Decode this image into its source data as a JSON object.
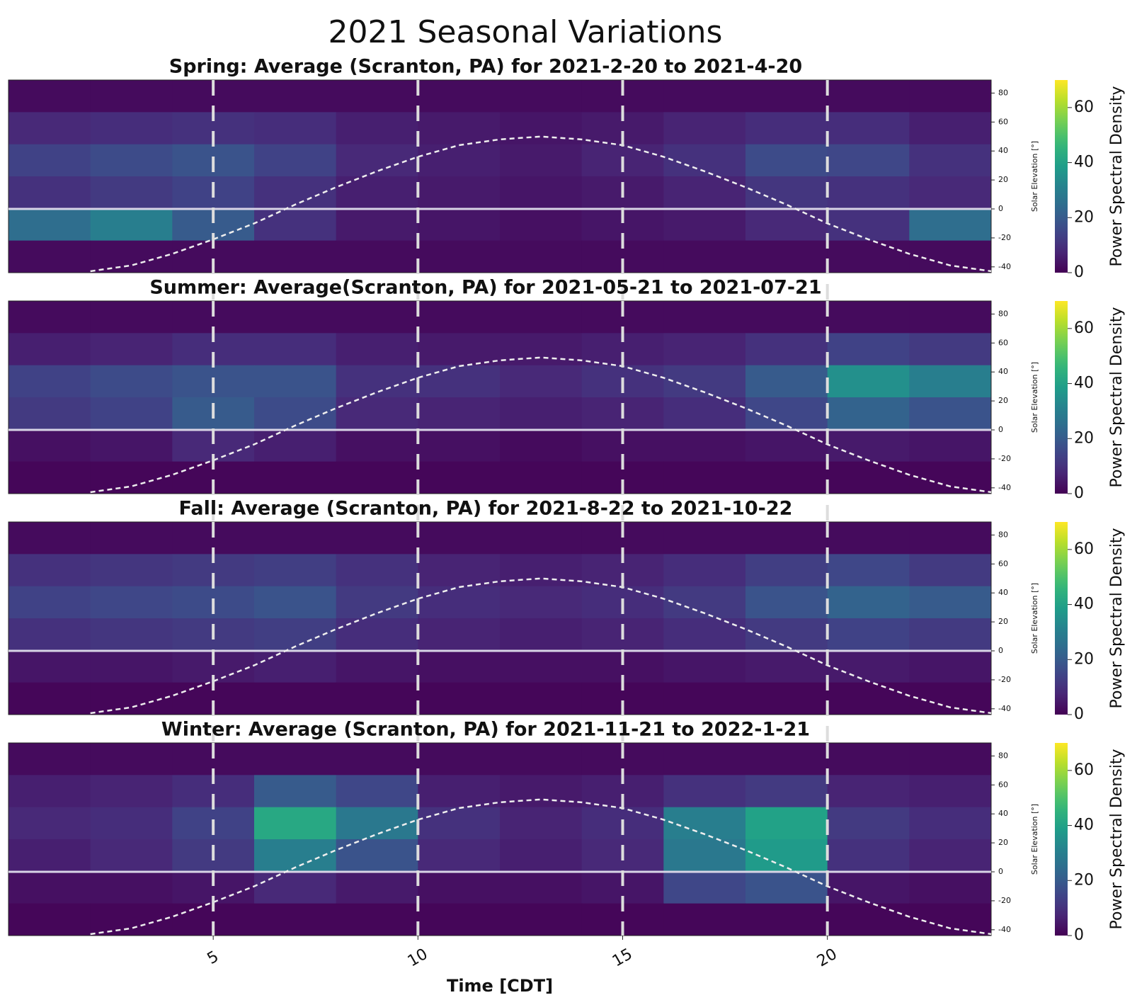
{
  "title": "2021 Seasonal Variations",
  "chart_data": [
    {
      "type": "heatmap",
      "title": "Spring: Average (Scranton, PA) for 2021-2-20 to 2021-4-20",
      "x_bins": [
        0,
        2,
        4,
        6,
        8,
        10,
        12,
        14,
        16,
        18,
        20,
        22,
        24
      ],
      "xlim": [
        0,
        24
      ],
      "xticks": [
        5,
        10,
        15,
        20
      ],
      "values": [
        [
          2,
          2,
          2,
          2,
          2,
          2,
          2,
          2,
          2,
          2,
          2,
          2
        ],
        [
          8,
          9,
          10,
          9,
          6,
          5,
          4,
          5,
          7,
          9,
          9,
          6
        ],
        [
          14,
          16,
          18,
          14,
          8,
          6,
          5,
          7,
          10,
          16,
          15,
          10
        ],
        [
          10,
          12,
          14,
          10,
          6,
          5,
          4,
          5,
          7,
          11,
          10,
          8
        ],
        [
          25,
          30,
          20,
          10,
          5,
          4,
          3,
          4,
          5,
          8,
          10,
          25
        ],
        [
          2,
          2,
          2,
          2,
          2,
          2,
          2,
          2,
          2,
          2,
          2,
          2
        ]
      ],
      "colormap": "viridis",
      "clim": [
        0,
        70
      ],
      "cticks": [
        0,
        20,
        40,
        60
      ],
      "colorbar_label": "Power Spectral Density",
      "y2lim": [
        -44,
        89
      ],
      "y2ticks": [
        -40,
        -20,
        0,
        20,
        40,
        60,
        80
      ],
      "y2label": "Solar Elevation [°]",
      "hline": 0,
      "elevation": {
        "x": [
          2,
          3,
          4,
          5,
          6,
          7,
          8,
          9,
          10,
          11,
          12,
          13,
          14,
          15,
          16,
          17,
          18,
          19,
          20,
          21,
          22,
          23,
          24
        ],
        "values": [
          -43,
          -39,
          -31,
          -21,
          -10,
          3,
          15,
          26,
          36,
          44,
          48,
          50,
          48,
          44,
          36,
          26,
          15,
          3,
          -10,
          -21,
          -31,
          -39,
          -43
        ]
      }
    },
    {
      "type": "heatmap",
      "title": "Summer: Average(Scranton, PA) for 2021-05-21 to 2021-07-21",
      "x_bins": [
        0,
        2,
        4,
        6,
        8,
        10,
        12,
        14,
        16,
        18,
        20,
        22,
        24
      ],
      "xlim": [
        0,
        24
      ],
      "xticks": [
        5,
        10,
        15,
        20
      ],
      "values": [
        [
          2,
          2,
          2,
          2,
          2,
          2,
          2,
          2,
          2,
          2,
          2,
          2
        ],
        [
          6,
          7,
          9,
          9,
          6,
          5,
          5,
          6,
          7,
          10,
          14,
          12
        ],
        [
          14,
          16,
          18,
          18,
          10,
          10,
          8,
          10,
          12,
          20,
          35,
          30
        ],
        [
          12,
          14,
          20,
          16,
          8,
          7,
          6,
          7,
          9,
          15,
          22,
          18
        ],
        [
          3,
          4,
          8,
          6,
          3,
          3,
          2,
          3,
          3,
          4,
          5,
          4
        ],
        [
          1,
          1,
          1,
          1,
          1,
          1,
          1,
          1,
          1,
          1,
          1,
          1
        ]
      ],
      "colormap": "viridis",
      "clim": [
        0,
        70
      ],
      "cticks": [
        0,
        20,
        40,
        60
      ],
      "colorbar_label": "Power Spectral Density",
      "y2lim": [
        -44,
        89
      ],
      "y2ticks": [
        -40,
        -20,
        0,
        20,
        40,
        60,
        80
      ],
      "y2label": "Solar Elevation [°]",
      "hline": 0,
      "elevation": {
        "x": [
          2,
          3,
          4,
          5,
          6,
          7,
          8,
          9,
          10,
          11,
          12,
          13,
          14,
          15,
          16,
          17,
          18,
          19,
          20,
          21,
          22,
          23,
          24
        ],
        "values": [
          -43,
          -39,
          -31,
          -21,
          -10,
          3,
          15,
          26,
          36,
          44,
          48,
          50,
          48,
          44,
          36,
          26,
          15,
          3,
          -10,
          -21,
          -31,
          -39,
          -43
        ]
      }
    },
    {
      "type": "heatmap",
      "title": "Fall: Average (Scranton, PA) for 2021-8-22 to 2021-10-22",
      "x_bins": [
        0,
        2,
        4,
        6,
        8,
        10,
        12,
        14,
        16,
        18,
        20,
        22,
        24
      ],
      "xlim": [
        0,
        24
      ],
      "xticks": [
        5,
        10,
        15,
        20
      ],
      "values": [
        [
          2,
          2,
          2,
          2,
          2,
          2,
          2,
          2,
          2,
          2,
          2,
          2
        ],
        [
          10,
          11,
          12,
          13,
          10,
          7,
          6,
          7,
          9,
          13,
          15,
          12
        ],
        [
          14,
          15,
          16,
          18,
          12,
          9,
          8,
          9,
          12,
          18,
          22,
          20
        ],
        [
          10,
          11,
          12,
          13,
          9,
          7,
          6,
          7,
          9,
          12,
          14,
          12
        ],
        [
          4,
          4,
          5,
          6,
          4,
          3,
          3,
          3,
          4,
          5,
          5,
          4
        ],
        [
          1,
          1,
          1,
          1,
          1,
          1,
          1,
          1,
          1,
          1,
          1,
          1
        ]
      ],
      "colormap": "viridis",
      "clim": [
        0,
        70
      ],
      "cticks": [
        0,
        20,
        40,
        60
      ],
      "colorbar_label": "Power Spectral Density",
      "y2lim": [
        -44,
        89
      ],
      "y2ticks": [
        -40,
        -20,
        0,
        20,
        40,
        60,
        80
      ],
      "y2label": "Solar Elevation [°]",
      "hline": 0,
      "elevation": {
        "x": [
          2,
          3,
          4,
          5,
          6,
          7,
          8,
          9,
          10,
          11,
          12,
          13,
          14,
          15,
          16,
          17,
          18,
          19,
          20,
          21,
          22,
          23,
          24
        ],
        "values": [
          -43,
          -39,
          -31,
          -21,
          -10,
          3,
          15,
          26,
          36,
          44,
          48,
          50,
          48,
          44,
          36,
          26,
          15,
          3,
          -10,
          -21,
          -31,
          -39,
          -43
        ]
      }
    },
    {
      "type": "heatmap",
      "title": "Winter: Average (Scranton, PA) for 2021-11-21 to 2022-1-21",
      "x_bins": [
        0,
        2,
        4,
        6,
        8,
        10,
        12,
        14,
        16,
        18,
        20,
        22,
        24
      ],
      "xlim": [
        0,
        24
      ],
      "xticks": [
        5,
        10,
        15,
        20
      ],
      "xlabel": "Time [CDT]",
      "values": [
        [
          2,
          2,
          2,
          2,
          2,
          2,
          2,
          2,
          2,
          2,
          2,
          2
        ],
        [
          6,
          7,
          9,
          20,
          15,
          6,
          5,
          6,
          10,
          12,
          7,
          6
        ],
        [
          8,
          9,
          14,
          42,
          28,
          10,
          7,
          9,
          30,
          40,
          12,
          9
        ],
        [
          6,
          8,
          12,
          30,
          18,
          8,
          6,
          8,
          28,
          38,
          10,
          7
        ],
        [
          3,
          3,
          4,
          8,
          5,
          3,
          3,
          4,
          15,
          18,
          4,
          3
        ],
        [
          1,
          1,
          1,
          1,
          1,
          1,
          1,
          1,
          1,
          1,
          1,
          1
        ]
      ],
      "colormap": "viridis",
      "clim": [
        0,
        70
      ],
      "cticks": [
        0,
        20,
        40,
        60
      ],
      "colorbar_label": "Power Spectral Density",
      "y2lim": [
        -44,
        89
      ],
      "y2ticks": [
        -40,
        -20,
        0,
        20,
        40,
        60,
        80
      ],
      "y2label": "Solar Elevation [°]",
      "hline": 0,
      "elevation": {
        "x": [
          2,
          3,
          4,
          5,
          6,
          7,
          8,
          9,
          10,
          11,
          12,
          13,
          14,
          15,
          16,
          17,
          18,
          19,
          20,
          21,
          22,
          23,
          24
        ],
        "values": [
          -43,
          -39,
          -31,
          -21,
          -10,
          3,
          15,
          26,
          36,
          44,
          48,
          50,
          48,
          44,
          36,
          26,
          15,
          3,
          -10,
          -21,
          -31,
          -39,
          -43
        ]
      }
    }
  ]
}
